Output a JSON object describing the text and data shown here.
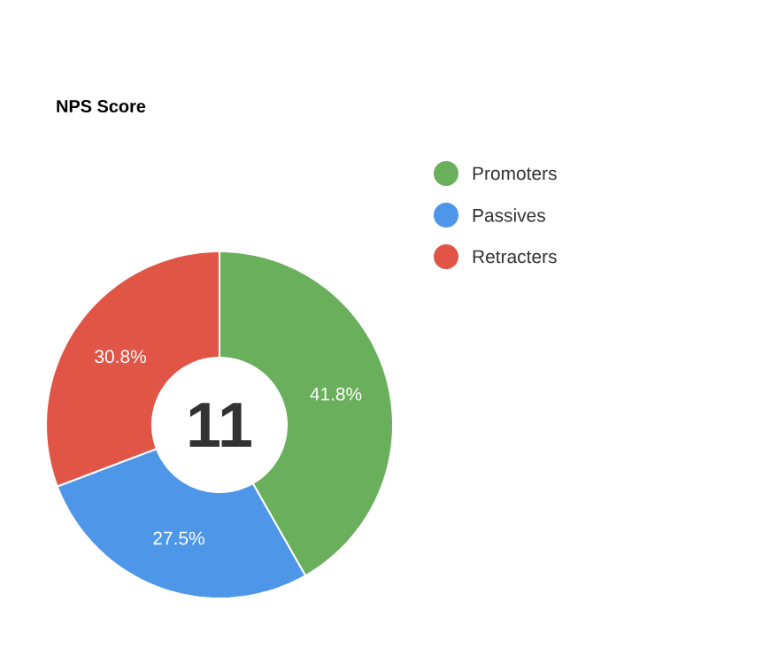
{
  "chart_data": {
    "type": "donut",
    "title": "NPS Score",
    "categories": [
      "Promoters",
      "Passives",
      "Retracters"
    ],
    "values": [
      41.8,
      27.5,
      30.8
    ],
    "value_labels": [
      "41.8%",
      "27.5%",
      "30.8%"
    ],
    "colors": [
      "#6aaf5c",
      "#4e96e8",
      "#e05546"
    ],
    "annotations": [
      "11"
    ],
    "legend": "right"
  }
}
